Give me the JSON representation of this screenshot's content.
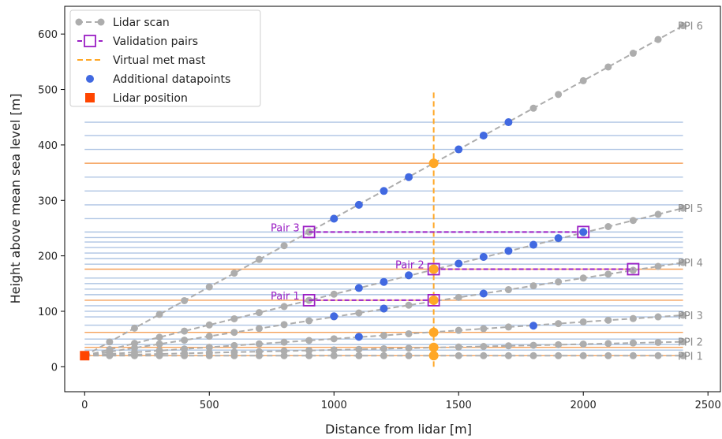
{
  "chart_data": {
    "type": "line",
    "xlabel": "Distance from lidar [m]",
    "ylabel": "Height above mean sea level [m]",
    "xlim": [
      -80,
      2550
    ],
    "ylim": [
      -45,
      650
    ],
    "xticks": [
      0,
      500,
      1000,
      1500,
      2000,
      2500
    ],
    "yticks": [
      0,
      100,
      200,
      300,
      400,
      500,
      600
    ],
    "grid": false,
    "legend_position": "top-left",
    "legend": [
      {
        "label": "Lidar scan",
        "kind": "lidar-scan"
      },
      {
        "label": "Validation pairs",
        "kind": "validation-pairs"
      },
      {
        "label": "Virtual met mast",
        "kind": "virtual-mast"
      },
      {
        "label": "Additional datapoints",
        "kind": "additional"
      },
      {
        "label": "Lidar position",
        "kind": "lidar-position"
      }
    ],
    "colors": {
      "scan": "#adadad",
      "validation": "#9b1fc4",
      "mast": "#ffa726",
      "additional": "#4169e1",
      "lidar": "#ff4500",
      "blue_lines": "#aec4e3",
      "orange_lines": "#f5a15a",
      "ppi_label": "#8c8c8c"
    },
    "lidar_position": {
      "x": 0,
      "y": 20
    },
    "ppi_scans": [
      {
        "name": "PPI 1",
        "end_height": 20
      },
      {
        "name": "PPI 2",
        "end_height": 45
      },
      {
        "name": "PPI 3",
        "end_height": 93
      },
      {
        "name": "PPI 4",
        "end_height": 188
      },
      {
        "name": "PPI 5",
        "end_height": 286
      },
      {
        "name": "PPI 6",
        "end_height": 615
      }
    ],
    "scan_x_step": 100,
    "scan_x_max": 2400,
    "blue_heights": [
      30,
      40,
      50,
      75,
      90,
      100,
      110,
      130,
      140,
      150,
      160,
      185,
      195,
      205,
      215,
      225,
      233,
      243,
      267,
      292,
      317,
      342,
      392,
      417,
      441
    ],
    "orange_heights": [
      20,
      35,
      62,
      120,
      176,
      367
    ],
    "horizontal_lines_x_range": [
      0,
      2400
    ],
    "virtual_mast": {
      "x": 1400,
      "y_range": [
        0,
        500
      ],
      "points": [
        20,
        35,
        62,
        120,
        176,
        367
      ]
    },
    "additional_points": [
      {
        "x": 1100,
        "y": 54
      },
      {
        "x": 1800,
        "y": 74
      },
      {
        "x": 1000,
        "y": 91
      },
      {
        "x": 1200,
        "y": 105
      },
      {
        "x": 1600,
        "y": 132
      },
      {
        "x": 1100,
        "y": 142
      },
      {
        "x": 1200,
        "y": 153
      },
      {
        "x": 1300,
        "y": 165
      },
      {
        "x": 1500,
        "y": 186
      },
      {
        "x": 1600,
        "y": 198
      },
      {
        "x": 1700,
        "y": 209
      },
      {
        "x": 1800,
        "y": 220
      },
      {
        "x": 1900,
        "y": 232
      },
      {
        "x": 2000,
        "y": 243
      },
      {
        "x": 1000,
        "y": 267
      },
      {
        "x": 1100,
        "y": 292
      },
      {
        "x": 1200,
        "y": 317
      },
      {
        "x": 1300,
        "y": 342
      },
      {
        "x": 1500,
        "y": 392
      },
      {
        "x": 1600,
        "y": 417
      },
      {
        "x": 1700,
        "y": 441
      }
    ],
    "validation_pairs": [
      {
        "label": "Pair 1",
        "x1": 900,
        "x2": 1400,
        "y": 120
      },
      {
        "label": "Pair 2",
        "x1": 1400,
        "x2": 2200,
        "y": 176
      },
      {
        "label": "Pair 3",
        "x1": 900,
        "x2": 2000,
        "y": 243
      }
    ]
  }
}
